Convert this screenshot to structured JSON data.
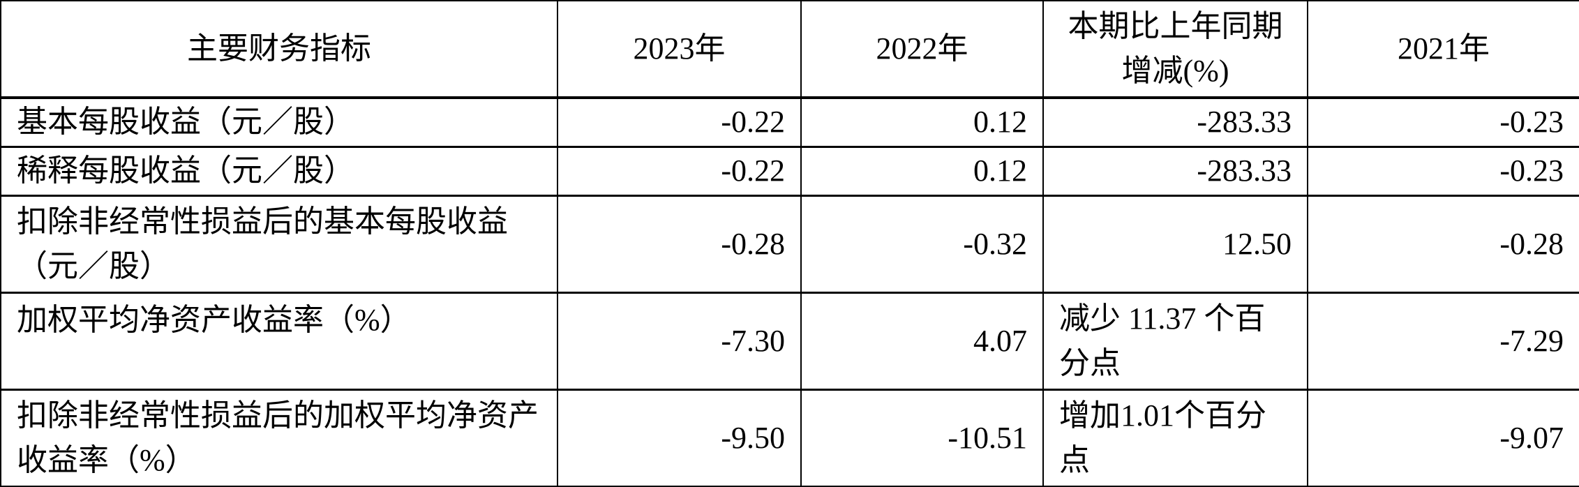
{
  "table": {
    "headers": [
      "主要财务指标",
      "2023年",
      "2022年",
      "本期比上年同期增减(%)",
      "2021年"
    ],
    "rows": [
      {
        "label": "基本每股收益（元／股）",
        "y2023": "-0.22",
        "y2022": "0.12",
        "change": "-283.33",
        "y2021": "-0.23"
      },
      {
        "label": "稀释每股收益（元／股）",
        "y2023": "-0.22",
        "y2022": "0.12",
        "change": "-283.33",
        "y2021": "-0.23"
      },
      {
        "label": "扣除非经常性损益后的基本每股收益（元／股）",
        "y2023": "-0.28",
        "y2022": "-0.32",
        "change": "12.50",
        "y2021": "-0.28"
      },
      {
        "label": "加权平均净资产收益率（%）",
        "y2023": "-7.30",
        "y2022": "4.07",
        "change": "减少 11.37 个百分点",
        "y2021": "-7.29"
      },
      {
        "label": "扣除非经常性损益后的加权平均净资产收益率（%）",
        "y2023": "-9.50",
        "y2022": "-10.51",
        "change": "增加1.01个百分点",
        "y2021": "-9.07"
      }
    ]
  }
}
